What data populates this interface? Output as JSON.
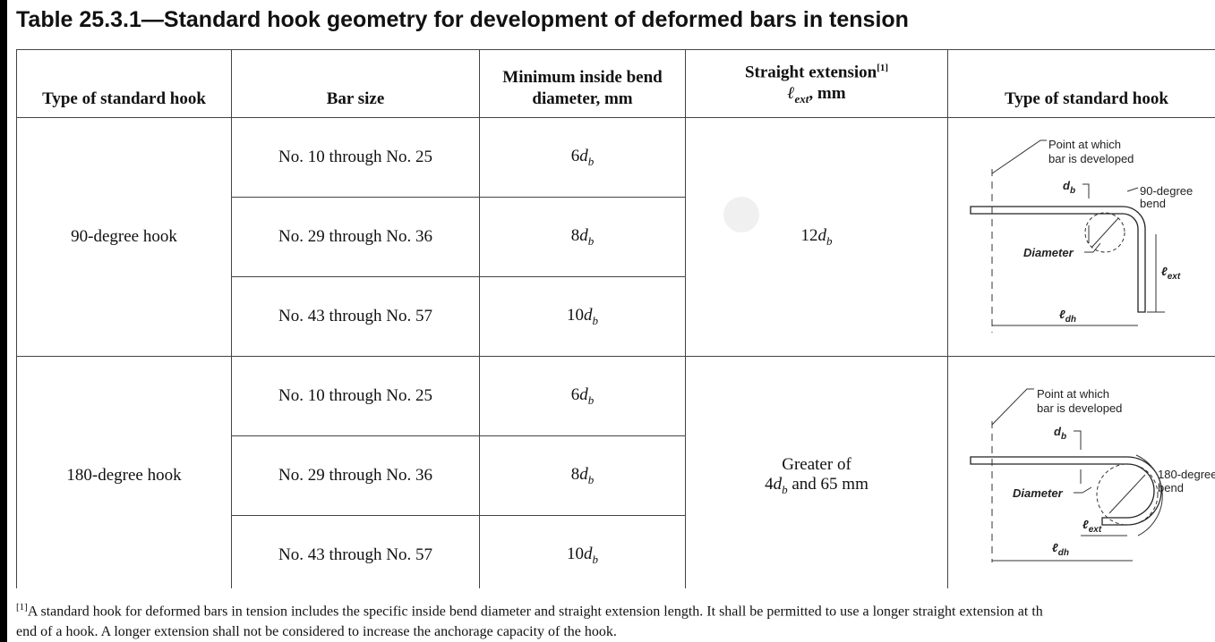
{
  "title": "Table 25.3.1—Standard hook geometry for development of deformed bars in tension",
  "table": {
    "header": {
      "hook_type": "Type of standard hook",
      "bar_size": "Bar size",
      "bend_diameter": [
        "Minimum inside bend",
        "diameter, mm"
      ],
      "extension": {
        "text": "Straight extension",
        "note": "[1]",
        "symbol": "ℓ",
        "subscript": "ext",
        "unit": ", mm"
      },
      "figure": "Type of standard hook"
    },
    "groups": [
      {
        "hook_type": "90-degree hook",
        "rows": [
          {
            "bar_size": "No. 10 through No. 25",
            "diameter": [
              "6",
              "d",
              "b"
            ]
          },
          {
            "bar_size": "No. 29 through No. 36",
            "diameter": [
              "8",
              "d",
              "b"
            ]
          },
          {
            "bar_size": "No. 43 through No. 57",
            "diameter": [
              "10",
              "d",
              "b"
            ]
          }
        ],
        "extension": {
          "parts": [
            "12",
            "d",
            "b"
          ]
        },
        "figure": {
          "point": [
            "Point at which",
            "bar is developed"
          ],
          "db": [
            "d",
            "b"
          ],
          "bend": [
            "90-degree",
            "bend"
          ],
          "diameter": "Diameter",
          "lext": [
            "ℓ",
            "ext"
          ],
          "ldh": [
            "ℓ",
            "dh"
          ]
        }
      },
      {
        "hook_type": "180-degree hook",
        "rows": [
          {
            "bar_size": "No. 10 through No. 25",
            "diameter": [
              "6",
              "d",
              "b"
            ]
          },
          {
            "bar_size": "No. 29 through No. 36",
            "diameter": [
              "8",
              "d",
              "b"
            ]
          },
          {
            "bar_size": "No. 43 through No. 57",
            "diameter": [
              "10",
              "d",
              "b"
            ]
          }
        ],
        "extension": {
          "line1": "Greater of",
          "parts": [
            "4",
            "d",
            "b",
            " and 65 mm"
          ]
        },
        "figure": {
          "point": [
            "Point at which",
            "bar is developed"
          ],
          "db": [
            "d",
            "b"
          ],
          "bend": [
            "180-degree",
            "bend"
          ],
          "diameter": "Diameter",
          "lext": [
            "ℓ",
            "ext"
          ],
          "ldh": [
            "ℓ",
            "dh"
          ]
        }
      }
    ]
  },
  "footnote": {
    "marker": "[1]",
    "lines": [
      "A standard hook for deformed bars in tension includes the specific inside bend diameter and straight extension length. It shall be permitted to use a longer straight extension at th",
      "end of a hook. A longer extension shall not be considered to increase the anchorage capacity of the hook."
    ]
  }
}
